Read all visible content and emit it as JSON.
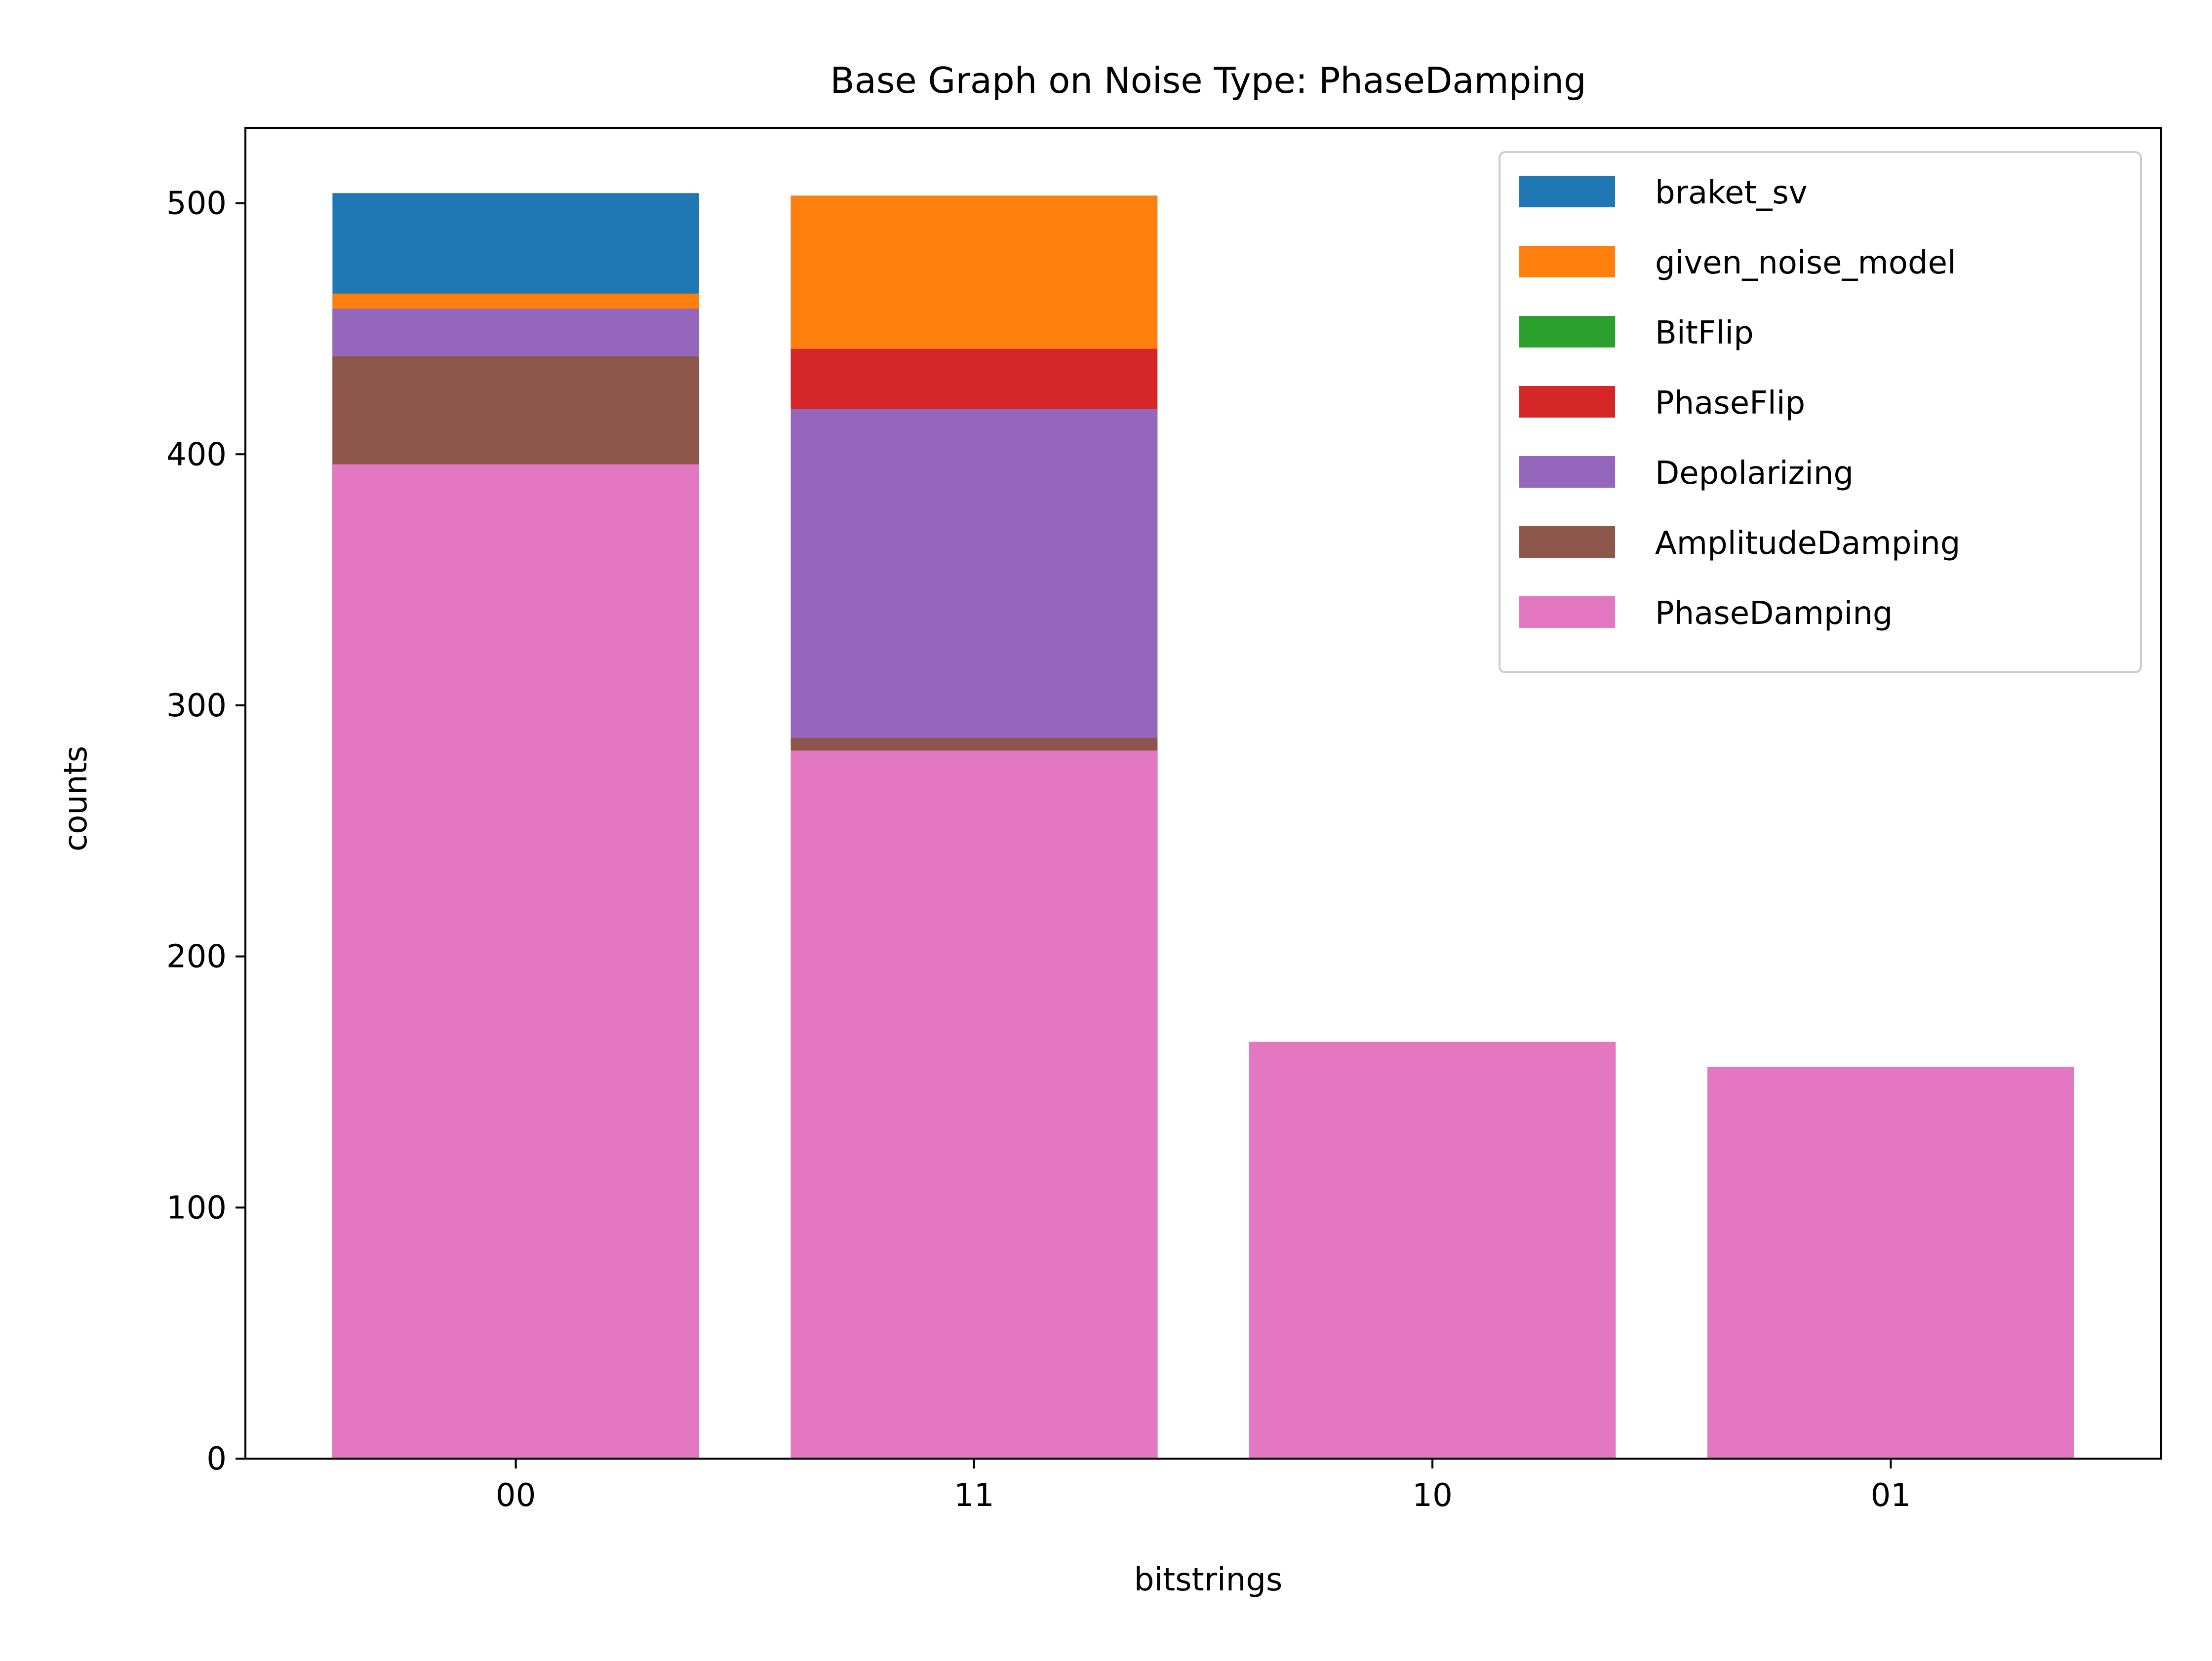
{
  "chart_data": {
    "type": "bar",
    "title": "Base Graph on Noise Type: PhaseDamping",
    "xlabel": "bitstrings",
    "ylabel": "counts",
    "categories": [
      "00",
      "11",
      "10",
      "01"
    ],
    "ylim": [
      0,
      530
    ],
    "yticks": [
      0,
      100,
      200,
      300,
      400,
      500
    ],
    "grid": false,
    "legend_position": "top-right",
    "overlay": "bars of each series drawn over the previous ones (not stacked)",
    "series": [
      {
        "name": "braket_sv",
        "color": "#1f77b4",
        "values": [
          504,
          503,
          null,
          null
        ]
      },
      {
        "name": "given_noise_model",
        "color": "#ff7f0e",
        "values": [
          464,
          503,
          null,
          null
        ]
      },
      {
        "name": "BitFlip",
        "color": "#2ca02c",
        "values": [
          null,
          null,
          null,
          null
        ]
      },
      {
        "name": "PhaseFlip",
        "color": "#d62728",
        "values": [
          null,
          442,
          null,
          null
        ]
      },
      {
        "name": "Depolarizing",
        "color": "#9467bd",
        "values": [
          458,
          418,
          null,
          null
        ]
      },
      {
        "name": "AmplitudeDamping",
        "color": "#8c564b",
        "values": [
          439,
          287,
          null,
          null
        ]
      },
      {
        "name": "PhaseDamping",
        "color": "#e377c2",
        "values": [
          396,
          282,
          166,
          156
        ]
      }
    ]
  }
}
